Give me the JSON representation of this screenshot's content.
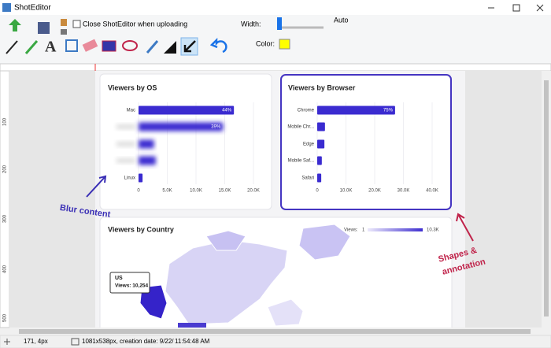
{
  "window": {
    "title": "ShotEditor"
  },
  "toolbar": {
    "checkbox_label": "Close ShotEditor when uploading",
    "width_label": "Width:",
    "width_value": "Auto",
    "color_label": "Color:"
  },
  "ruler": {
    "vertical_labels": [
      "100",
      "200",
      "300",
      "400",
      "500"
    ]
  },
  "os_chart": {
    "title": "Viewers by OS",
    "categories": [
      "Mac",
      null,
      null,
      null,
      "Linux"
    ],
    "values": [
      16600,
      14700,
      2700,
      3000,
      700
    ],
    "value_labels": [
      "44%",
      "39%",
      null,
      null,
      null
    ],
    "ticks": [
      "0",
      "5.0K",
      "10.0K",
      "15.0K",
      "20.0K"
    ]
  },
  "browser_chart": {
    "title": "Viewers by Browser",
    "categories": [
      "Chrome",
      "Mobile Chr...",
      "Edge",
      "Mobile Saf...",
      "Safari"
    ],
    "values": [
      27100,
      2700,
      2500,
      1600,
      1400
    ],
    "value_labels": [
      "75%",
      null,
      null,
      null,
      null
    ],
    "ticks": [
      "0",
      "10.0K",
      "20.0K",
      "30.0K",
      "40.0K"
    ]
  },
  "country_map": {
    "title": "Viewers by Country",
    "legend_label": "Views:",
    "legend_min": "1",
    "legend_max": "10.3K",
    "tooltip_title": "US",
    "tooltip_value": "Views: 10,254"
  },
  "annotations": {
    "blur": "Blur content",
    "shapes_line1": "Shapes &",
    "shapes_line2": "annotation"
  },
  "status_bar": {
    "cursor": "171, 4px",
    "info": "1081x538px, creation date: 9/22/",
    "time": "11:54:48 AM"
  }
}
